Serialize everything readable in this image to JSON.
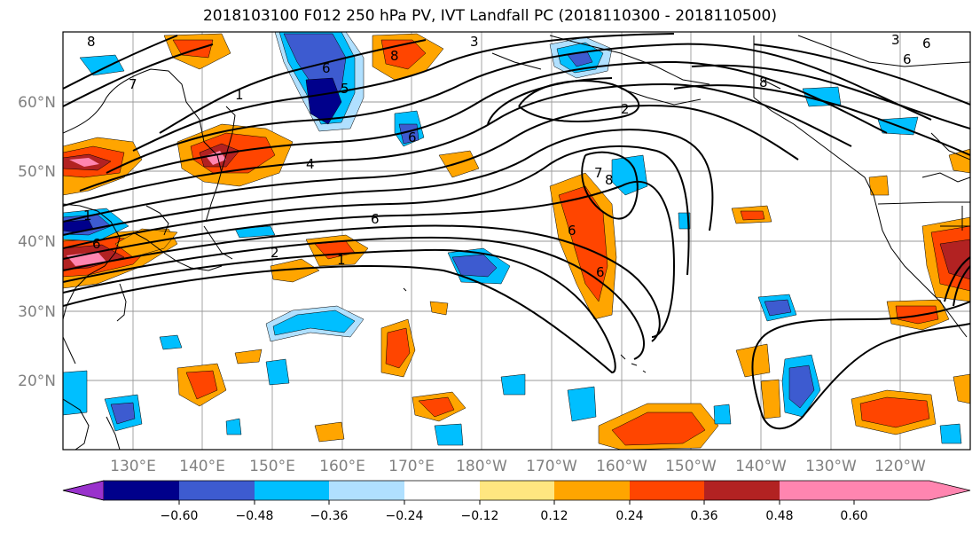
{
  "title": "2018103100 F012 250 hPa PV, IVT Landfall PC (2018110300 - 2018110500)",
  "lat_labels": [
    "60°N",
    "50°N",
    "40°N",
    "30°N",
    "20°N"
  ],
  "lon_labels": [
    "130°E",
    "140°E",
    "150°E",
    "160°E",
    "170°E",
    "180°W",
    "170°W",
    "160°W",
    "150°W",
    "140°W",
    "130°W",
    "120°W"
  ],
  "colorbar": {
    "colors": [
      "#9932cc",
      "#00008b",
      "#3d5bd0",
      "#00bfff",
      "#b0e0ff",
      "#ffffff",
      "#ffe680",
      "#ffa500",
      "#ff4500",
      "#b22222",
      "#ff85b0"
    ],
    "ticks": [
      "−0.60",
      "−0.48",
      "−0.36",
      "−0.24",
      "−0.12",
      "0.12",
      "0.24",
      "0.36",
      "0.48",
      "0.60"
    ]
  },
  "contour_labels": [
    "8",
    "7",
    "6",
    "5",
    "4",
    "3",
    "2",
    "1",
    "1",
    "6",
    "6",
    "6",
    "7",
    "8",
    "8",
    "6",
    "1",
    "8",
    "2",
    "6",
    "6",
    "6",
    "3"
  ]
}
